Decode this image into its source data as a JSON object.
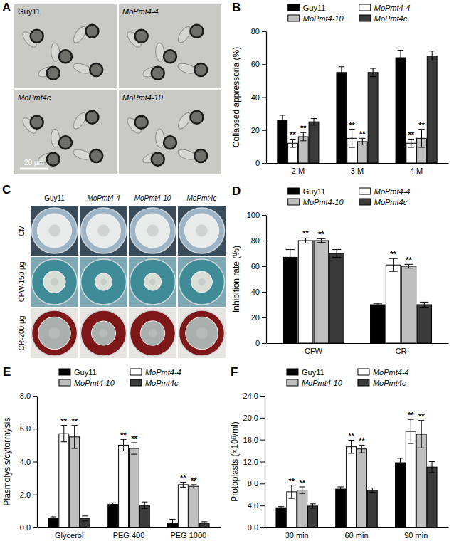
{
  "figure": {
    "A": {
      "label": "A",
      "panels": [
        {
          "name": "Guy11"
        },
        {
          "name": "MoPmt4-4"
        },
        {
          "name": "MoPmt4c"
        },
        {
          "name": "MoPmt4-10"
        }
      ],
      "scale_bar": "20 μm"
    },
    "C": {
      "label": "C",
      "columns": [
        "Guy11",
        "MoPmt4-4",
        "MoPmt4-10",
        "MoPmt4c"
      ],
      "rows": [
        "CM",
        "CFW-150 μg",
        "CR-200 μg"
      ]
    }
  },
  "chart_data": [
    {
      "label": "B",
      "type": "bar",
      "ylabel": "Collapsed appressoria (%)",
      "categories": [
        "2 M",
        "3 M",
        "4 M"
      ],
      "ylim": [
        0,
        80
      ],
      "yticks": [
        0,
        20,
        40,
        60,
        80
      ],
      "legend": "top",
      "series": [
        {
          "name": "Guy11",
          "color": "#000000",
          "values": [
            26,
            55,
            64
          ],
          "errors": [
            3,
            3.5,
            4.5
          ]
        },
        {
          "name": "MoPmt4-4",
          "color": "#ffffff",
          "values": [
            12,
            15,
            12
          ],
          "errors": [
            2.5,
            5.5,
            2.5
          ],
          "annotations": [
            "**",
            "**",
            "**"
          ]
        },
        {
          "name": "MoPmt4-10",
          "color": "#bfbfbf",
          "values": [
            16,
            13,
            15
          ],
          "errors": [
            2.5,
            2,
            5.5
          ],
          "annotations": [
            "**",
            "**",
            "**"
          ]
        },
        {
          "name": "MoPmt4c",
          "color": "#3a3a3a",
          "values": [
            25,
            55,
            65
          ],
          "errors": [
            2,
            2.5,
            3
          ]
        }
      ]
    },
    {
      "label": "D",
      "type": "bar",
      "ylabel": "Inhibition rate (%)",
      "categories": [
        "CFW",
        "CR"
      ],
      "ylim": [
        0,
        100
      ],
      "yticks": [
        0,
        20,
        40,
        60,
        80,
        100
      ],
      "legend": "top",
      "series": [
        {
          "name": "Guy11",
          "color": "#000000",
          "values": [
            67,
            30
          ],
          "errors": [
            6,
            1
          ]
        },
        {
          "name": "MoPmt4-4",
          "color": "#ffffff",
          "values": [
            80,
            61
          ],
          "errors": [
            2,
            5
          ],
          "annotations": [
            "**",
            "**"
          ]
        },
        {
          "name": "MoPmt4-10",
          "color": "#bfbfbf",
          "values": [
            80,
            60
          ],
          "errors": [
            1.5,
            1.5
          ],
          "annotations": [
            "**",
            "**"
          ]
        },
        {
          "name": "MoPmt4c",
          "color": "#3a3a3a",
          "values": [
            70,
            30
          ],
          "errors": [
            3,
            2
          ]
        }
      ]
    },
    {
      "label": "E",
      "type": "bar",
      "ylabel": "Plasmolysis/cytorrhysis",
      "categories": [
        "Glycerol",
        "PEG 400",
        "PEG 1000"
      ],
      "ylim": [
        0,
        8
      ],
      "yticks": [
        {
          "value": 0,
          "label": "0.0"
        },
        {
          "value": 2,
          "label": "2.0"
        },
        {
          "value": 4,
          "label": "4.0"
        },
        {
          "value": 6,
          "label": "6.0"
        },
        {
          "value": 8,
          "label": "8.0"
        }
      ],
      "legend": "top",
      "series": [
        {
          "name": "Guy11",
          "color": "#000000",
          "values": [
            0.55,
            1.4,
            0.25
          ],
          "errors": [
            0.1,
            0.1,
            0.25
          ]
        },
        {
          "name": "MoPmt4-4",
          "color": "#ffffff",
          "values": [
            5.7,
            5.0,
            2.6
          ],
          "errors": [
            0.5,
            0.35,
            0.15
          ],
          "annotations": [
            "**",
            "**",
            "**"
          ]
        },
        {
          "name": "MoPmt4-10",
          "color": "#bfbfbf",
          "values": [
            5.5,
            4.8,
            2.5
          ],
          "errors": [
            0.7,
            0.35,
            0.1
          ],
          "annotations": [
            "**",
            "**",
            "**"
          ]
        },
        {
          "name": "MoPmt4c",
          "color": "#3a3a3a",
          "values": [
            0.55,
            1.35,
            0.25
          ],
          "errors": [
            0.15,
            0.2,
            0.1
          ]
        }
      ]
    },
    {
      "label": "F",
      "type": "bar",
      "ylabel": "Protoplasts (×10⁶/ml)",
      "categories": [
        "30 min",
        "60 min",
        "90 min"
      ],
      "ylim": [
        0,
        24
      ],
      "yticks": [
        {
          "value": 0,
          "label": "0.0"
        },
        {
          "value": 4,
          "label": "4.0"
        },
        {
          "value": 8,
          "label": "8.0"
        },
        {
          "value": 12,
          "label": "12.0"
        },
        {
          "value": 16,
          "label": "16.0"
        },
        {
          "value": 20,
          "label": "20.0"
        },
        {
          "value": 24,
          "label": "24.0"
        }
      ],
      "legend": "top",
      "series": [
        {
          "name": "Guy11",
          "color": "#000000",
          "values": [
            3.6,
            7.0,
            11.8
          ],
          "errors": [
            0.2,
            0.4,
            0.8
          ]
        },
        {
          "name": "MoPmt4-4",
          "color": "#ffffff",
          "values": [
            6.5,
            14.7,
            17.5
          ],
          "errors": [
            1.2,
            1.2,
            2.2
          ],
          "annotations": [
            "**",
            "**",
            "**"
          ]
        },
        {
          "name": "MoPmt4-10",
          "color": "#bfbfbf",
          "values": [
            6.8,
            14.3,
            17.0
          ],
          "errors": [
            0.6,
            0.7,
            2.5
          ],
          "annotations": [
            "**",
            "**",
            "**"
          ]
        },
        {
          "name": "MoPmt4c",
          "color": "#3a3a3a",
          "values": [
            3.9,
            6.8,
            11.0
          ],
          "errors": [
            0.4,
            0.4,
            1.0
          ]
        }
      ]
    }
  ]
}
